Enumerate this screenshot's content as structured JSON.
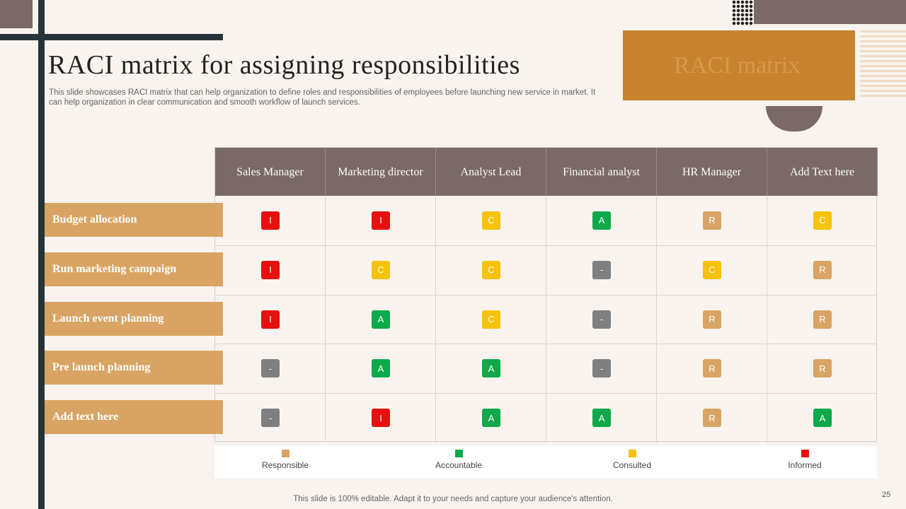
{
  "title": "RACI matrix for assigning responsibilities",
  "subtitle": "This slide showcases RACI matrix that can help organization to define roles and responsibilities of employees before launching new service in market. It can help organization in clear communication and smooth workflow of launch services.",
  "badge_text": "RACI matrix",
  "columns": [
    "Sales Manager",
    "Marketing director",
    "Analyst Lead",
    "Financial analyst",
    "HR Manager",
    "Add Text here"
  ],
  "rows": [
    {
      "label": "Budget allocation",
      "cells": [
        "I",
        "I",
        "C",
        "A",
        "R",
        "C"
      ]
    },
    {
      "label": "Run marketing campaign",
      "cells": [
        "I",
        "C",
        "C",
        "-",
        "C",
        "R"
      ]
    },
    {
      "label": "Launch event planning",
      "cells": [
        "I",
        "A",
        "C",
        "-",
        "R",
        "R"
      ]
    },
    {
      "label": "Pre launch planning",
      "cells": [
        "-",
        "A",
        "A",
        "-",
        "R",
        "R"
      ]
    },
    {
      "label": "Add text here",
      "cells": [
        "-",
        "I",
        "A",
        "A",
        "R",
        "A"
      ]
    }
  ],
  "colors": {
    "R": "#d9a463",
    "A": "#0fa84a",
    "C": "#f7c20a",
    "I": "#e8100e",
    "-": "#7f7f7f"
  },
  "legend": [
    {
      "label": "Responsible",
      "color": "#d9a463"
    },
    {
      "label": "Accountable",
      "color": "#0fa84a"
    },
    {
      "label": "Consulted",
      "color": "#f7c20a"
    },
    {
      "label": "Informed",
      "color": "#e8100e"
    }
  ],
  "footer": "This slide is 100% editable. Adapt it to your needs and capture your audience's attention.",
  "page_number": "25"
}
